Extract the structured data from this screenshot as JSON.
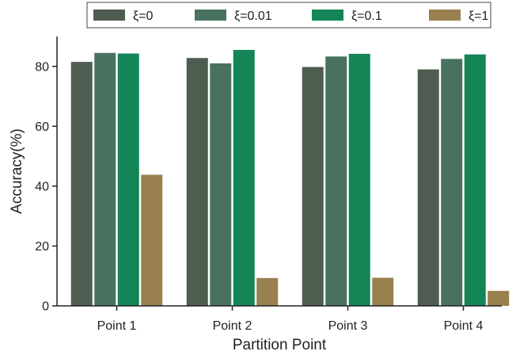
{
  "chart_data": {
    "type": "bar",
    "title": "",
    "xlabel": "Partition Point",
    "ylabel": "Accuracy(%)",
    "categories": [
      "Point 1",
      "Point 2",
      "Point 3",
      "Point 4"
    ],
    "ylim": [
      0,
      90
    ],
    "yticks": [
      0,
      20,
      40,
      60,
      80
    ],
    "grid": false,
    "legend_position": "top",
    "series": [
      {
        "name": "ξ=0",
        "color": "#4f5d50",
        "values": [
          81.5,
          82.8,
          79.8,
          79.0
        ]
      },
      {
        "name": "ξ=0.01",
        "color": "#48725f",
        "values": [
          84.5,
          81.0,
          83.3,
          82.5
        ]
      },
      {
        "name": "ξ=0.1",
        "color": "#138556",
        "values": [
          84.3,
          85.5,
          84.2,
          84.0
        ]
      },
      {
        "name": "ξ=1",
        "color": "#99804f",
        "values": [
          43.8,
          9.3,
          9.4,
          5.0
        ]
      }
    ]
  }
}
